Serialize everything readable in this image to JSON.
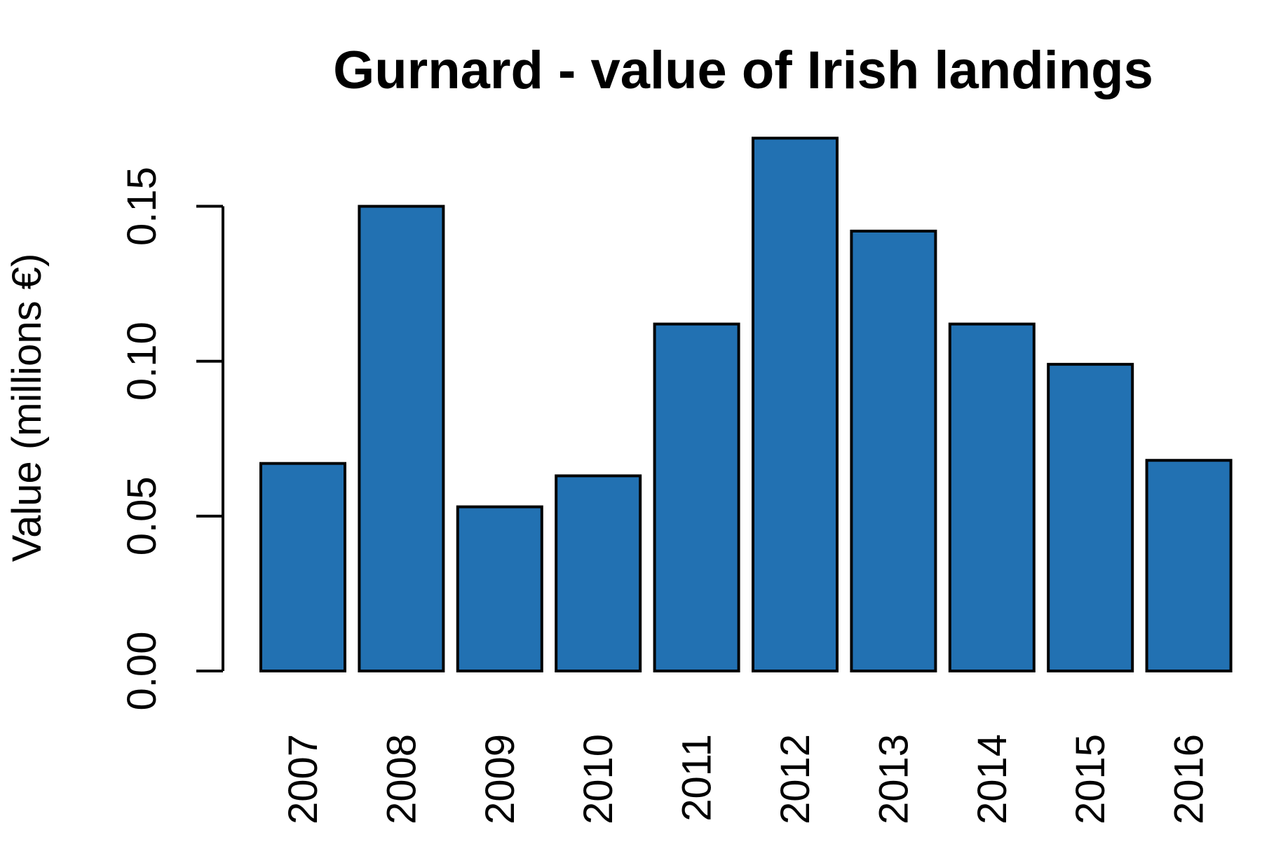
{
  "chart_data": {
    "type": "bar",
    "title": "Gurnard - value of Irish landings",
    "xlabel": "",
    "ylabel": "Value (millions €)",
    "categories": [
      "2007",
      "2008",
      "2009",
      "2010",
      "2011",
      "2012",
      "2013",
      "2014",
      "2015",
      "2016"
    ],
    "values": [
      0.067,
      0.15,
      0.053,
      0.063,
      0.112,
      0.172,
      0.142,
      0.112,
      0.099,
      0.068
    ],
    "ylim": [
      0,
      0.15
    ],
    "yticks": [
      "0.00",
      "0.05",
      "0.10",
      "0.15"
    ],
    "grid": false,
    "colors": {
      "bar_fill": "#2271B2",
      "bar_stroke": "#000000"
    }
  }
}
